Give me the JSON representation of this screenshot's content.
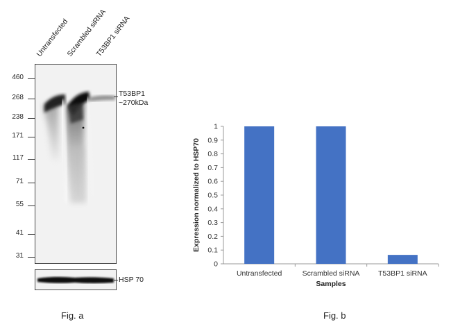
{
  "figure_a": {
    "lanes": [
      "Untransfected",
      "Scrambled siRNA",
      "T53BP1 siRNA"
    ],
    "markers": [
      "460",
      "268",
      "238",
      "171",
      "117",
      "71",
      "55",
      "41",
      "31"
    ],
    "band_label": "T53BP1",
    "band_size": "~270kDa",
    "loading_label": "HSP 70",
    "caption": "Fig. a"
  },
  "figure_b": {
    "caption": "Fig. b"
  },
  "chart_data": {
    "type": "bar",
    "categories": [
      "Untransfected",
      "Scrambled siRNA",
      "T53BP1 siRNA"
    ],
    "values": [
      1.0,
      1.0,
      0.065
    ],
    "xlabel": "Samples",
    "ylabel": "Expression normalized to HSP70",
    "ylim": [
      0,
      1
    ],
    "yticks": [
      "0",
      "0.1",
      "0.2",
      "0.3",
      "0.4",
      "0.5",
      "0.6",
      "0.7",
      "0.8",
      "0.9",
      "1"
    ],
    "bar_color": "#4472C4",
    "grid": false
  }
}
